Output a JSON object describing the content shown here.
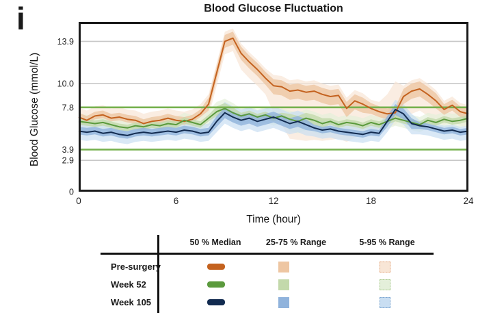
{
  "figure_label": "i",
  "chart_data": {
    "type": "line",
    "title": "Blood Glucose Fluctuation",
    "xlabel": "Time (hour)",
    "ylabel": "Blood Glucose (mmol/L)",
    "xlim": [
      0,
      24
    ],
    "ylim": [
      0,
      15.7
    ],
    "xticks": [
      0,
      6,
      12,
      18,
      24
    ],
    "yticks": [
      13.9,
      10.0,
      7.8,
      3.9,
      2.9,
      0
    ],
    "ytick_labels": [
      "13.9",
      "10.0",
      "7.8",
      "3.9",
      "2.9",
      "0"
    ],
    "gridlines": [
      13.9,
      10.0,
      2.9
    ],
    "grid_color": "#c8c8c8",
    "frame_color": "#1a1a1a",
    "reference_lines": [
      {
        "value": 7.8,
        "color": "#76b14e"
      },
      {
        "value": 3.9,
        "color": "#76b14e"
      }
    ],
    "x_step": 0.5,
    "series": [
      {
        "name": "Pre-surgery",
        "color": "#c4621f",
        "band25_color": "#eec6a2",
        "band95_color": "#f8e6d6",
        "dash_color": "#e3a477",
        "median": [
          6.9,
          6.6,
          7.0,
          7.1,
          6.8,
          6.9,
          6.7,
          6.6,
          6.3,
          6.5,
          6.6,
          6.8,
          6.6,
          6.5,
          6.7,
          7.2,
          8.1,
          11.0,
          13.9,
          14.2,
          12.8,
          12.0,
          11.3,
          10.5,
          9.8,
          9.7,
          9.3,
          9.4,
          9.2,
          9.3,
          9.0,
          8.8,
          8.9,
          7.7,
          8.4,
          8.1,
          7.7,
          7.4,
          7.2,
          7.3,
          8.8,
          9.3,
          9.5,
          9.0,
          8.4,
          7.6,
          8.0,
          7.4,
          7.2
        ],
        "q25": [
          6.6,
          6.3,
          6.7,
          6.8,
          6.5,
          6.6,
          6.4,
          6.3,
          6.0,
          6.2,
          6.3,
          6.5,
          6.3,
          6.2,
          6.4,
          6.9,
          7.5,
          10.4,
          13.3,
          13.6,
          12.2,
          11.4,
          10.7,
          9.9,
          9.0,
          8.9,
          8.5,
          8.6,
          8.4,
          8.5,
          8.2,
          8.0,
          8.1,
          6.9,
          7.6,
          7.3,
          7.2,
          6.9,
          6.7,
          6.8,
          8.1,
          8.6,
          8.8,
          8.3,
          7.7,
          7.1,
          7.5,
          6.9,
          6.7
        ],
        "q75": [
          7.3,
          7.0,
          7.4,
          7.5,
          7.2,
          7.3,
          7.1,
          7.0,
          6.7,
          6.9,
          7.0,
          7.2,
          7.0,
          6.9,
          7.1,
          7.6,
          8.7,
          11.6,
          14.5,
          14.8,
          13.4,
          12.6,
          11.9,
          11.1,
          10.4,
          10.3,
          9.9,
          10.0,
          9.8,
          9.9,
          9.6,
          9.4,
          9.5,
          8.3,
          9.0,
          8.7,
          8.2,
          7.9,
          7.7,
          7.8,
          9.5,
          10.0,
          10.2,
          9.7,
          9.1,
          8.1,
          8.5,
          7.9,
          7.7
        ],
        "p5": [
          6.0,
          5.7,
          6.1,
          6.2,
          5.9,
          6.0,
          5.8,
          5.7,
          5.4,
          5.6,
          5.7,
          5.9,
          5.7,
          5.6,
          5.8,
          6.3,
          6.9,
          9.8,
          12.7,
          13.0,
          11.3,
          10.5,
          9.8,
          9.0,
          7.3,
          6.2,
          4.9,
          4.8,
          4.7,
          4.8,
          4.7,
          4.8,
          4.9,
          4.6,
          5.0,
          5.2,
          5.4,
          5.6,
          6.0,
          6.2,
          6.8,
          7.2,
          7.5,
          7.0,
          6.5,
          6.2,
          6.6,
          6.1,
          6.0
        ],
        "p95": [
          7.8,
          7.5,
          7.9,
          8.0,
          7.7,
          7.8,
          7.6,
          7.5,
          7.2,
          7.4,
          7.5,
          7.7,
          7.5,
          7.4,
          7.6,
          8.1,
          9.0,
          11.9,
          14.8,
          15.1,
          13.7,
          12.9,
          12.2,
          11.4,
          10.8,
          10.7,
          10.3,
          10.4,
          10.2,
          10.3,
          10.0,
          9.8,
          9.9,
          8.7,
          9.4,
          9.1,
          8.5,
          8.3,
          9.0,
          10.2,
          9.8,
          10.3,
          10.5,
          10.0,
          9.4,
          8.4,
          8.8,
          8.2,
          8.0
        ]
      },
      {
        "name": "Week 52",
        "color": "#5b9a3d",
        "band25_color": "#c3d9ab",
        "band95_color": "#e4efda",
        "dash_color": "#a6c98a",
        "median": [
          6.5,
          6.4,
          6.3,
          6.4,
          6.2,
          6.0,
          5.9,
          6.1,
          6.0,
          6.2,
          6.1,
          6.3,
          6.2,
          6.6,
          6.4,
          6.2,
          6.8,
          7.4,
          7.7,
          7.3,
          7.0,
          7.2,
          6.9,
          7.1,
          6.8,
          7.0,
          6.7,
          6.5,
          6.8,
          6.6,
          6.3,
          6.5,
          6.2,
          6.4,
          6.3,
          6.1,
          6.4,
          6.2,
          6.5,
          6.8,
          6.6,
          6.4,
          6.2,
          6.6,
          6.4,
          6.7,
          6.5,
          6.6,
          6.8
        ],
        "q25": [
          6.2,
          6.1,
          6.0,
          6.1,
          5.9,
          5.7,
          5.6,
          5.8,
          5.7,
          5.9,
          5.8,
          6.0,
          5.9,
          6.3,
          6.1,
          5.9,
          6.5,
          7.0,
          7.3,
          6.9,
          6.7,
          6.9,
          6.6,
          6.8,
          6.5,
          6.7,
          6.3,
          6.1,
          6.4,
          6.2,
          5.9,
          6.2,
          5.9,
          6.1,
          6.0,
          5.8,
          6.1,
          5.9,
          6.2,
          6.5,
          6.3,
          6.1,
          5.9,
          6.3,
          6.1,
          6.4,
          6.2,
          6.3,
          6.5
        ],
        "q75": [
          6.8,
          6.7,
          6.6,
          6.7,
          6.5,
          6.3,
          6.2,
          6.4,
          6.3,
          6.5,
          6.4,
          6.6,
          6.5,
          6.9,
          6.7,
          6.5,
          7.1,
          7.9,
          8.2,
          7.8,
          7.3,
          7.5,
          7.2,
          7.4,
          7.1,
          7.3,
          7.2,
          7.0,
          7.3,
          7.1,
          6.8,
          6.8,
          6.5,
          6.7,
          6.6,
          6.4,
          6.7,
          6.5,
          6.8,
          7.1,
          6.9,
          6.7,
          6.5,
          6.9,
          6.7,
          7.0,
          6.8,
          6.9,
          7.1
        ],
        "p5": [
          5.8,
          5.7,
          5.6,
          5.7,
          5.5,
          5.3,
          5.2,
          5.4,
          5.3,
          5.5,
          5.4,
          5.6,
          5.5,
          5.9,
          5.7,
          5.5,
          6.1,
          6.5,
          6.8,
          6.4,
          6.3,
          6.5,
          6.2,
          6.4,
          6.1,
          6.3,
          5.6,
          5.4,
          5.7,
          5.5,
          5.2,
          5.4,
          5.5,
          5.7,
          5.6,
          5.4,
          5.7,
          5.5,
          5.8,
          6.1,
          5.9,
          5.7,
          5.5,
          5.9,
          5.7,
          6.0,
          5.8,
          5.9,
          6.1
        ],
        "p95": [
          7.2,
          7.1,
          7.0,
          7.1,
          6.9,
          6.7,
          6.6,
          6.8,
          6.7,
          6.9,
          6.8,
          7.0,
          6.9,
          7.3,
          7.1,
          6.9,
          7.5,
          8.3,
          8.6,
          8.2,
          7.7,
          7.9,
          7.6,
          7.8,
          7.5,
          7.7,
          7.5,
          7.3,
          7.6,
          7.4,
          7.1,
          7.3,
          6.9,
          7.1,
          7.0,
          6.8,
          7.1,
          6.9,
          7.2,
          7.5,
          7.3,
          7.1,
          6.9,
          7.3,
          7.1,
          7.4,
          7.2,
          7.3,
          7.5
        ]
      },
      {
        "name": "Week 105",
        "color": "#122b50",
        "band25_color": "#90b3dc",
        "band95_color": "#c9def2",
        "dash_color": "#7fa8d2",
        "median": [
          5.6,
          5.5,
          5.6,
          5.4,
          5.5,
          5.3,
          5.2,
          5.4,
          5.5,
          5.4,
          5.5,
          5.6,
          5.5,
          5.7,
          5.6,
          5.4,
          5.5,
          6.5,
          7.3,
          6.9,
          6.6,
          6.8,
          6.5,
          6.7,
          6.9,
          6.6,
          6.3,
          6.5,
          6.2,
          5.9,
          5.7,
          5.8,
          5.6,
          5.5,
          5.4,
          5.3,
          5.5,
          5.4,
          6.5,
          7.6,
          7.2,
          6.3,
          6.1,
          6.0,
          5.8,
          5.6,
          5.7,
          5.5,
          5.6
        ],
        "q25": [
          5.3,
          5.2,
          5.3,
          5.1,
          5.2,
          5.0,
          4.9,
          5.1,
          5.2,
          5.1,
          5.2,
          5.3,
          5.2,
          5.4,
          5.3,
          5.1,
          5.2,
          6.0,
          6.8,
          6.4,
          6.1,
          6.3,
          6.0,
          6.2,
          6.4,
          6.1,
          5.8,
          6.0,
          5.7,
          5.6,
          5.4,
          5.5,
          5.3,
          5.2,
          5.1,
          5.0,
          5.2,
          5.1,
          6.0,
          7.1,
          6.7,
          5.8,
          5.8,
          5.7,
          5.5,
          5.3,
          5.4,
          5.2,
          5.3
        ],
        "q75": [
          6.0,
          5.9,
          6.0,
          5.8,
          5.9,
          5.7,
          5.6,
          5.8,
          5.9,
          5.8,
          5.9,
          6.0,
          5.9,
          6.1,
          6.0,
          5.8,
          5.9,
          7.0,
          7.8,
          7.4,
          7.1,
          7.3,
          7.0,
          7.2,
          7.4,
          7.1,
          6.8,
          7.0,
          6.7,
          6.2,
          6.0,
          6.1,
          5.9,
          5.8,
          5.7,
          5.6,
          5.8,
          5.7,
          7.0,
          8.1,
          7.7,
          6.8,
          6.4,
          6.3,
          6.1,
          5.9,
          6.0,
          5.8,
          5.9
        ],
        "p5": [
          4.8,
          4.7,
          4.8,
          4.6,
          4.7,
          4.5,
          4.4,
          4.6,
          4.7,
          4.6,
          4.7,
          4.8,
          4.7,
          4.9,
          4.8,
          4.6,
          4.7,
          5.5,
          6.3,
          5.9,
          5.6,
          5.8,
          5.5,
          5.7,
          5.9,
          5.6,
          5.3,
          5.5,
          5.2,
          5.1,
          4.9,
          5.0,
          4.8,
          4.7,
          4.6,
          4.5,
          4.7,
          4.6,
          5.5,
          6.6,
          6.2,
          5.3,
          5.3,
          5.2,
          5.0,
          4.8,
          4.9,
          4.7,
          4.8
        ],
        "p95": [
          6.4,
          6.3,
          6.4,
          6.2,
          6.3,
          6.1,
          6.0,
          6.2,
          6.3,
          6.2,
          6.3,
          6.4,
          6.3,
          6.5,
          6.4,
          6.2,
          6.3,
          7.5,
          8.3,
          7.9,
          7.6,
          7.8,
          7.5,
          7.7,
          7.9,
          7.6,
          7.3,
          7.5,
          7.2,
          6.7,
          6.5,
          6.6,
          6.4,
          6.3,
          6.2,
          6.1,
          6.3,
          6.2,
          7.4,
          8.5,
          8.1,
          7.2,
          6.6,
          6.5,
          6.3,
          6.1,
          6.2,
          6.0,
          6.1
        ]
      }
    ],
    "legend": {
      "columns": [
        "50 % Median",
        "25-75 % Range",
        "5-95 % Range"
      ],
      "rows": [
        "Pre-surgery",
        "Week 52",
        "Week 105"
      ]
    }
  }
}
